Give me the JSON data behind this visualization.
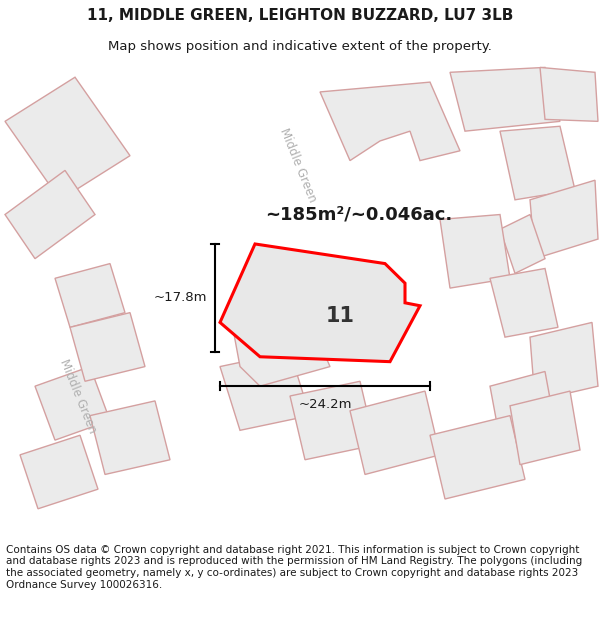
{
  "title": "11, MIDDLE GREEN, LEIGHTON BUZZARD, LU7 3LB",
  "subtitle": "Map shows position and indicative extent of the property.",
  "footer": "Contains OS data © Crown copyright and database right 2021. This information is subject to Crown copyright and database rights 2023 and is reproduced with the permission of HM Land Registry. The polygons (including the associated geometry, namely x, y co-ordinates) are subject to Crown copyright and database rights 2023 Ordnance Survey 100026316.",
  "area_label": "~185m²/~0.046ac.",
  "width_label": "~24.2m",
  "height_label": "~17.8m",
  "plot_number": "11",
  "building_fill": "#ebebeb",
  "building_edge": "#d4a0a0",
  "highlight_fill": "#e8e8e8",
  "highlight_edge": "#ff0000",
  "street_name_upper": "Middle Green",
  "street_name_lower": "Middle Green",
  "title_fontsize": 11,
  "subtitle_fontsize": 9.5,
  "footer_fontsize": 7.5,
  "map_bg": "#ffffff"
}
